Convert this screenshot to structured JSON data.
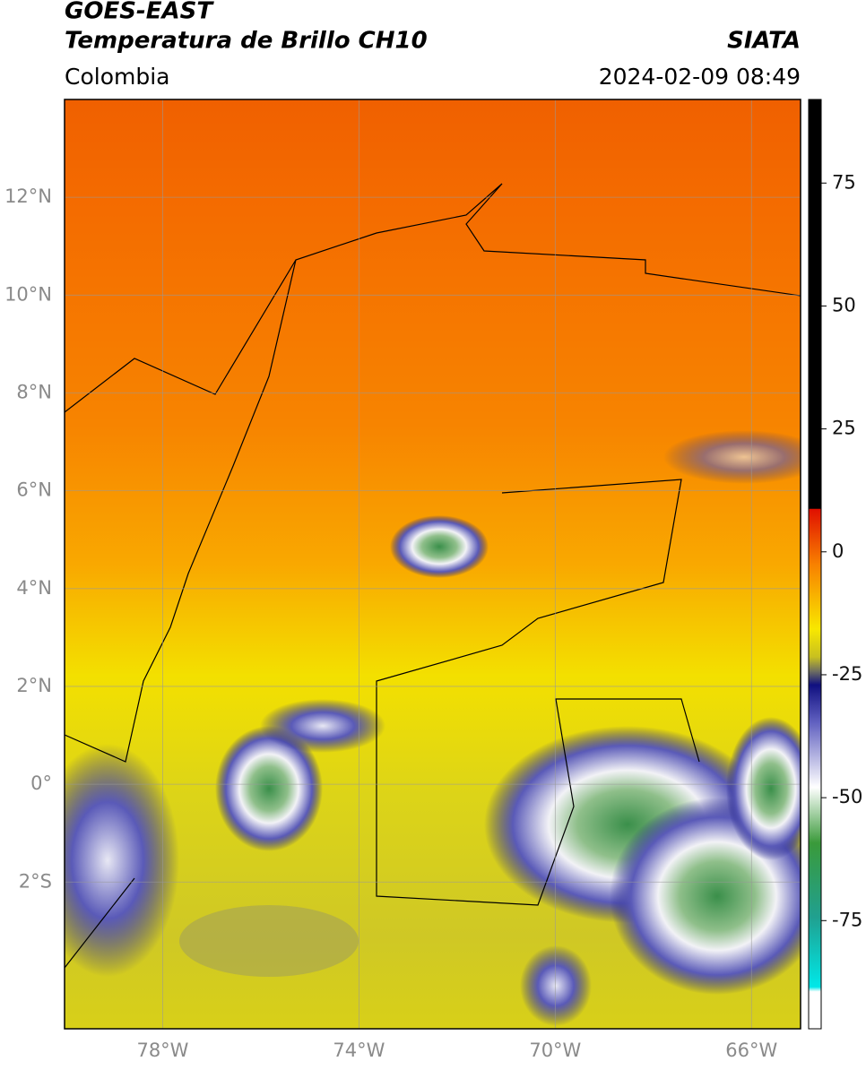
{
  "header": {
    "satellite": "GOES-EAST",
    "product": "Temperatura de Brillo CH10",
    "region": "Colombia",
    "source": "SIATA",
    "datetime": "2024-02-09 08:49"
  },
  "map": {
    "xlim": [
      -80,
      -65
    ],
    "ylim": [
      -5,
      14
    ],
    "xticks": [
      {
        "value": -78,
        "label": "78°W"
      },
      {
        "value": -74,
        "label": "74°W"
      },
      {
        "value": -70,
        "label": "70°W"
      },
      {
        "value": -66,
        "label": "66°W"
      }
    ],
    "yticks": [
      {
        "value": 12,
        "label": "12°N"
      },
      {
        "value": 10,
        "label": "10°N"
      },
      {
        "value": 8,
        "label": "8°N"
      },
      {
        "value": 6,
        "label": "6°N"
      },
      {
        "value": 4,
        "label": "4°N"
      },
      {
        "value": 2,
        "label": "2°N"
      },
      {
        "value": 0,
        "label": "0°"
      },
      {
        "value": -2,
        "label": "2°S"
      }
    ]
  },
  "colorbar": {
    "ylim": [
      -97,
      92
    ],
    "ticks": [
      75,
      50,
      25,
      0,
      -25,
      -50,
      -75
    ]
  }
}
